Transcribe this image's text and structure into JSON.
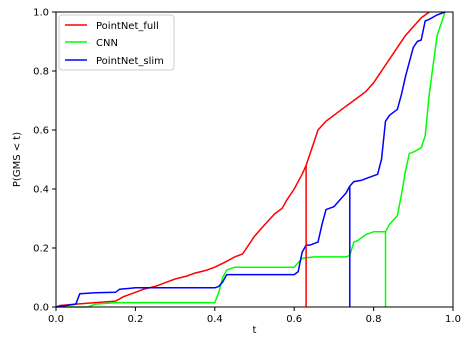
{
  "chart_data": {
    "type": "line",
    "title": "",
    "xlabel": "t",
    "ylabel": "P(GMS < t)",
    "xlim": [
      0.0,
      1.0
    ],
    "ylim": [
      0.0,
      1.0
    ],
    "xticks": [
      "0.0",
      "0.2",
      "0.4",
      "0.6",
      "0.8",
      "1.0"
    ],
    "yticks": [
      "0.0",
      "0.2",
      "0.4",
      "0.6",
      "0.8",
      "1.0"
    ],
    "grid": false,
    "legend_position": "top-left",
    "series": [
      {
        "name": "PointNet_full",
        "color": "#ff0000",
        "x": [
          0.0,
          0.01,
          0.05,
          0.1,
          0.15,
          0.17,
          0.2,
          0.22,
          0.25,
          0.28,
          0.3,
          0.33,
          0.35,
          0.38,
          0.4,
          0.43,
          0.45,
          0.47,
          0.48,
          0.5,
          0.52,
          0.54,
          0.55,
          0.57,
          0.58,
          0.6,
          0.62,
          0.63,
          0.64,
          0.65,
          0.66,
          0.68,
          0.7,
          0.72,
          0.74,
          0.76,
          0.78,
          0.8,
          0.82,
          0.84,
          0.86,
          0.88,
          0.9,
          0.92,
          0.94
        ],
        "y": [
          0.0,
          0.005,
          0.01,
          0.015,
          0.02,
          0.035,
          0.05,
          0.06,
          0.07,
          0.085,
          0.095,
          0.105,
          0.115,
          0.125,
          0.135,
          0.155,
          0.17,
          0.18,
          0.2,
          0.24,
          0.27,
          0.3,
          0.315,
          0.335,
          0.36,
          0.4,
          0.45,
          0.48,
          0.52,
          0.56,
          0.6,
          0.63,
          0.65,
          0.67,
          0.69,
          0.71,
          0.73,
          0.76,
          0.8,
          0.84,
          0.88,
          0.92,
          0.95,
          0.98,
          1.0
        ]
      },
      {
        "name": "CNN",
        "color": "#00ff00",
        "x": [
          0.0,
          0.08,
          0.1,
          0.15,
          0.2,
          0.3,
          0.4,
          0.41,
          0.42,
          0.43,
          0.45,
          0.5,
          0.55,
          0.6,
          0.62,
          0.65,
          0.7,
          0.73,
          0.74,
          0.75,
          0.76,
          0.78,
          0.8,
          0.83,
          0.84,
          0.86,
          0.87,
          0.88,
          0.89,
          0.9,
          0.92,
          0.93,
          0.94,
          0.95,
          0.96,
          0.98
        ],
        "y": [
          0.0,
          0.0,
          0.01,
          0.015,
          0.015,
          0.015,
          0.015,
          0.05,
          0.1,
          0.125,
          0.135,
          0.135,
          0.135,
          0.135,
          0.165,
          0.17,
          0.17,
          0.17,
          0.175,
          0.22,
          0.225,
          0.245,
          0.255,
          0.255,
          0.28,
          0.31,
          0.38,
          0.46,
          0.52,
          0.525,
          0.54,
          0.58,
          0.72,
          0.82,
          0.92,
          1.0
        ]
      },
      {
        "name": "PointNet_slim",
        "color": "#0000ff",
        "x": [
          0.0,
          0.05,
          0.06,
          0.1,
          0.15,
          0.16,
          0.2,
          0.25,
          0.3,
          0.35,
          0.4,
          0.41,
          0.42,
          0.43,
          0.45,
          0.5,
          0.55,
          0.6,
          0.61,
          0.62,
          0.63,
          0.64,
          0.66,
          0.67,
          0.68,
          0.7,
          0.72,
          0.73,
          0.74,
          0.75,
          0.77,
          0.79,
          0.81,
          0.82,
          0.83,
          0.84,
          0.86,
          0.87,
          0.88,
          0.89,
          0.9,
          0.91,
          0.92,
          0.93,
          0.94,
          0.96,
          0.98
        ],
        "y": [
          0.0,
          0.01,
          0.045,
          0.048,
          0.05,
          0.06,
          0.065,
          0.065,
          0.065,
          0.065,
          0.065,
          0.07,
          0.085,
          0.11,
          0.11,
          0.11,
          0.11,
          0.11,
          0.12,
          0.185,
          0.21,
          0.21,
          0.22,
          0.28,
          0.33,
          0.34,
          0.37,
          0.385,
          0.41,
          0.425,
          0.43,
          0.44,
          0.45,
          0.5,
          0.63,
          0.65,
          0.67,
          0.72,
          0.78,
          0.83,
          0.88,
          0.9,
          0.905,
          0.97,
          0.975,
          0.99,
          1.0
        ]
      }
    ],
    "vertical_markers": [
      {
        "series": "PointNet_full",
        "x": 0.63,
        "y": 0.48
      },
      {
        "series": "PointNet_slim",
        "x": 0.74,
        "y": 0.41
      },
      {
        "series": "CNN",
        "x": 0.83,
        "y": 0.255
      }
    ]
  }
}
